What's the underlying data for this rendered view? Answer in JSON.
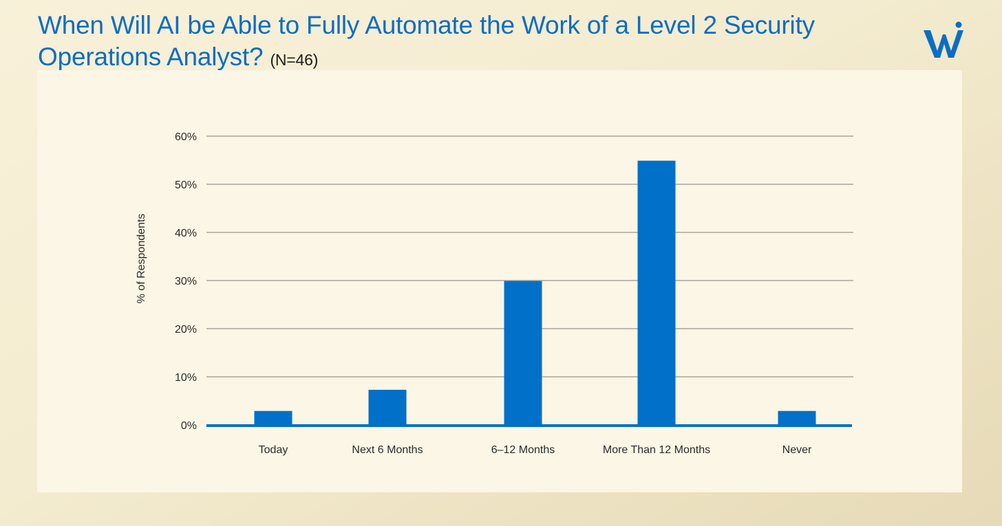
{
  "title": {
    "main": "When Will AI be Able to Fully Automate the Work of a Level 2 Security Operations Analyst?",
    "sample": "(N=46)"
  },
  "logo": {
    "icon": "w-logo-icon",
    "color": "#0b6dc4"
  },
  "colors": {
    "bar": "#0070c8",
    "grid": "#555555",
    "title": "#0b6dc4",
    "panel": "#fbf6e5"
  },
  "chart_data": {
    "type": "bar",
    "categories": [
      "Today",
      "Next 6 Months",
      "6–12 Months",
      "More Than 12 Months",
      "Never"
    ],
    "values": [
      2.9,
      7.3,
      29.9,
      54.9,
      2.9
    ],
    "ylabel": "% of Respondents",
    "xlabel": "",
    "ylim": [
      0,
      60
    ],
    "yticks": [
      0,
      10,
      20,
      30,
      40,
      50,
      60
    ],
    "ytick_labels": [
      "0%",
      "10%",
      "20%",
      "30%",
      "40%",
      "50%",
      "60%"
    ],
    "grid": true
  }
}
